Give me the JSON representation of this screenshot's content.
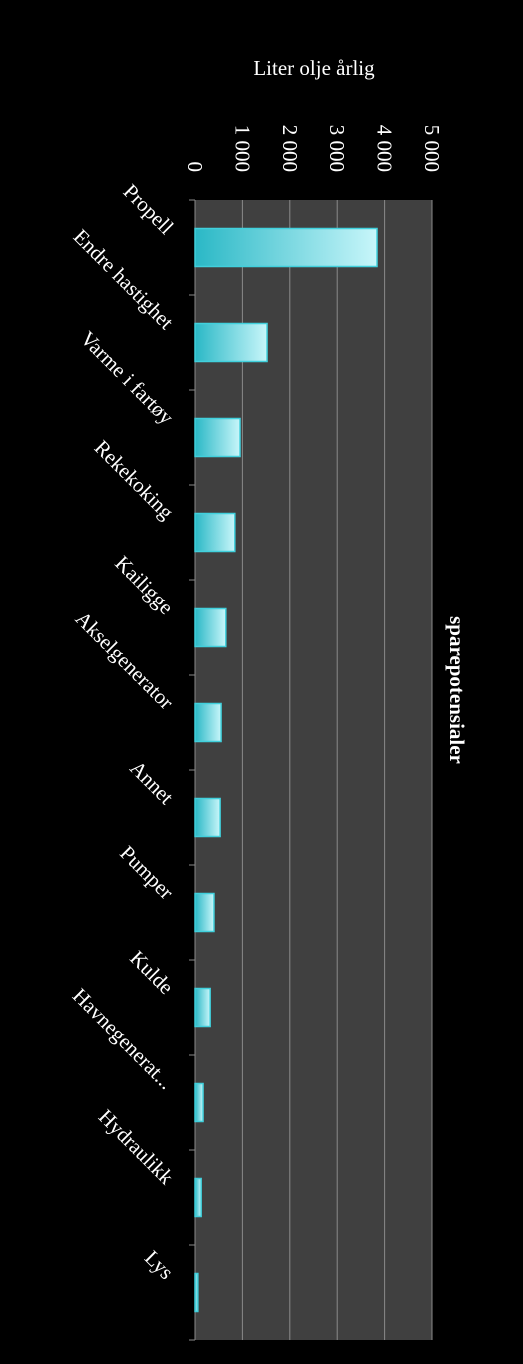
{
  "chart_data": {
    "type": "bar",
    "title": "sparepotensialer",
    "value_axis_label": "Liter olje årlig",
    "categories": [
      "Propell",
      "Endre hastighet",
      "Varme i fartøy",
      "Rekekoking",
      "Kailigge",
      "Akselgenerator",
      "Annet",
      "Pumper",
      "Kulde",
      "Havnegenerat...",
      "Hydraulikk",
      "Lys"
    ],
    "values": [
      3840,
      1520,
      950,
      840,
      650,
      550,
      530,
      400,
      320,
      170,
      130,
      60
    ],
    "color": "#40d0dc",
    "xlim": [
      0,
      5000
    ],
    "xticks": [
      0,
      {
        "value": 1000,
        "label": "1 000"
      },
      {
        "value": 2000,
        "label": "2 000"
      },
      {
        "value": 3000,
        "label": "3 000"
      },
      {
        "value": 4000,
        "label": "4 000"
      },
      {
        "value": 5000,
        "label": "5 000"
      }
    ],
    "grid": true
  }
}
